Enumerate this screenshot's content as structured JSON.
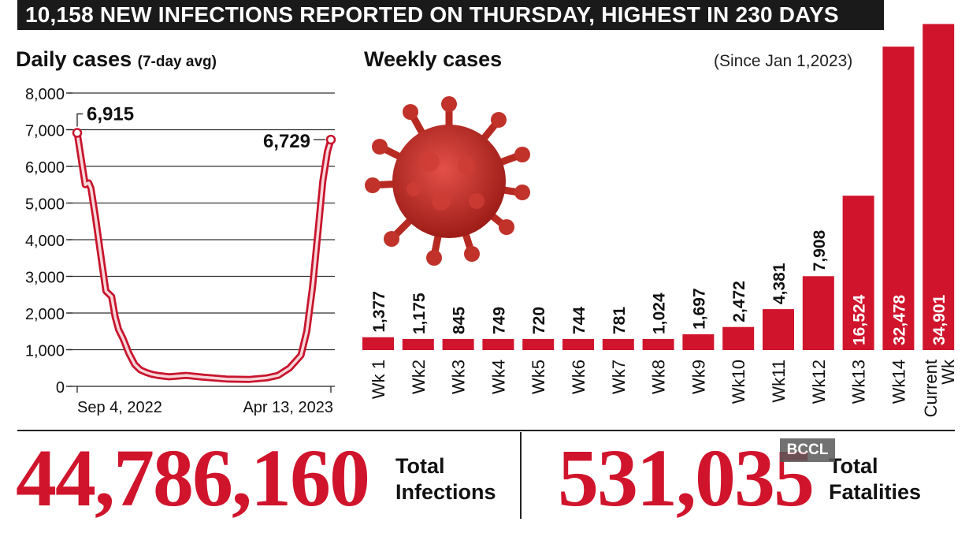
{
  "headline": "10,158 NEW INFECTIONS REPORTED ON THURSDAY, HIGHEST IN 230 DAYS",
  "left_chart": {
    "title": "Daily cases",
    "subtitle": "(7-day avg)"
  },
  "right_chart": {
    "title": "Weekly cases",
    "subtitle": "(Since Jan 1,2023)"
  },
  "totals": {
    "infections_value": "44,786,160",
    "infections_label_line1": "Total",
    "infections_label_line2": "Infections",
    "fatalities_value": "531,035",
    "fatalities_label_line1": "Total",
    "fatalities_label_line2": "Fatalities"
  },
  "watermark": "BCCL",
  "colors": {
    "accent": "#d0142c",
    "banner": "#1a1a1a"
  },
  "chart_data": [
    {
      "type": "line",
      "title": "Daily cases (7-day avg)",
      "ylim": [
        0,
        8000
      ],
      "yticks": [
        0,
        1000,
        2000,
        3000,
        4000,
        5000,
        6000,
        7000,
        8000
      ],
      "ytick_labels": [
        "0",
        "1,000",
        "2,000",
        "3,000",
        "4,000",
        "5,000",
        "6,000",
        "7,000",
        "8,000"
      ],
      "xlabels": [
        "Sep 4, 2022",
        "Apr 13, 2023"
      ],
      "xlim": [
        0,
        221
      ],
      "x": [
        0,
        3,
        7,
        10,
        12,
        16,
        20,
        25,
        30,
        33,
        36,
        40,
        45,
        50,
        55,
        60,
        65,
        70,
        80,
        95,
        110,
        130,
        150,
        165,
        175,
        185,
        195,
        200,
        205,
        210,
        214,
        218,
        221
      ],
      "values": [
        6915,
        6300,
        5500,
        5550,
        5400,
        4600,
        3700,
        2600,
        2450,
        1900,
        1550,
        1300,
        900,
        600,
        450,
        380,
        330,
        300,
        260,
        300,
        250,
        200,
        190,
        230,
        300,
        500,
        850,
        1500,
        2700,
        4300,
        5600,
        6400,
        6729
      ],
      "annotations": [
        {
          "label": "6,915",
          "x": 0,
          "y": 6915
        },
        {
          "label": "6,729",
          "x": 221,
          "y": 6729
        }
      ]
    },
    {
      "type": "bar",
      "title": "Weekly cases",
      "categories": [
        "Wk 1",
        "Wk2",
        "Wk3",
        "Wk4",
        "Wk5",
        "Wk6",
        "Wk7",
        "Wk8",
        "Wk9",
        "Wk10",
        "Wk11",
        "Wk12",
        "Wk13",
        "Wk14",
        "Current Wk"
      ],
      "values": [
        1377,
        1175,
        845,
        749,
        720,
        744,
        781,
        1024,
        1697,
        2472,
        4381,
        7908,
        16524,
        32478,
        34901
      ],
      "value_labels": [
        "1,377",
        "1,175",
        "845",
        "749",
        "720",
        "744",
        "781",
        "1,024",
        "1,697",
        "2,472",
        "4,381",
        "7,908",
        "16,524",
        "32,478",
        "34,901"
      ]
    }
  ]
}
